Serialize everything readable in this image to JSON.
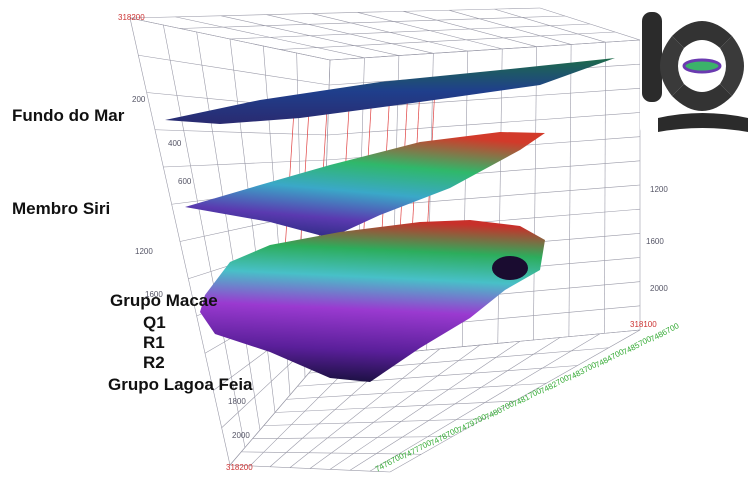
{
  "layers": [
    "Fundo do Mar",
    "Membro Siri",
    "Grupo Macae",
    "Q1",
    "R1",
    "R2",
    "Grupo Lagoa Feia"
  ],
  "depth_ticks_left": [
    200,
    400,
    600,
    1200,
    1600,
    1800,
    2000
  ],
  "depth_ticks_right": [
    1200,
    1600,
    2000
  ],
  "easting_labels": [
    318200,
    318100,
    318200
  ],
  "northing_labels": [
    7486700,
    7485700,
    7484700,
    7483700,
    7482700,
    7481700,
    7480700,
    7479700,
    7478700,
    7477700,
    7476700
  ]
}
